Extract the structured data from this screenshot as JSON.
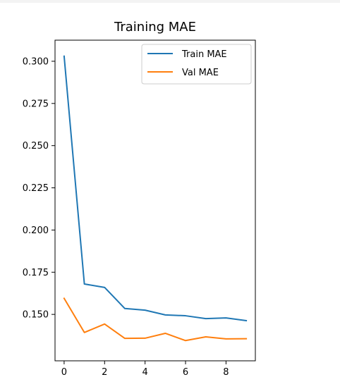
{
  "chart_data": {
    "type": "line",
    "title": "Training MAE",
    "xlabel": "",
    "ylabel": "",
    "x": [
      0,
      1,
      2,
      3,
      4,
      5,
      6,
      7,
      8,
      9
    ],
    "xlim": [
      -0.45,
      9.45
    ],
    "ylim": [
      0.1225,
      0.3125
    ],
    "xticks": [
      0,
      2,
      4,
      6,
      8
    ],
    "xtick_labels": [
      "0",
      "2",
      "4",
      "6",
      "8"
    ],
    "yticks": [
      0.15,
      0.175,
      0.2,
      0.225,
      0.25,
      0.275,
      0.3
    ],
    "ytick_labels": [
      "0.150",
      "0.175",
      "0.200",
      "0.225",
      "0.250",
      "0.275",
      "0.300"
    ],
    "grid": false,
    "legend_position": "top-right",
    "series": [
      {
        "name": "Train MAE",
        "color": "#1f77b4",
        "values": [
          0.303,
          0.168,
          0.166,
          0.1535,
          0.1525,
          0.1497,
          0.1492,
          0.1475,
          0.1479,
          0.1463
        ]
      },
      {
        "name": "Val MAE",
        "color": "#ff7f0e",
        "values": [
          0.1595,
          0.1393,
          0.1443,
          0.1358,
          0.1359,
          0.1388,
          0.1345,
          0.1367,
          0.1355,
          0.1356
        ]
      }
    ]
  }
}
